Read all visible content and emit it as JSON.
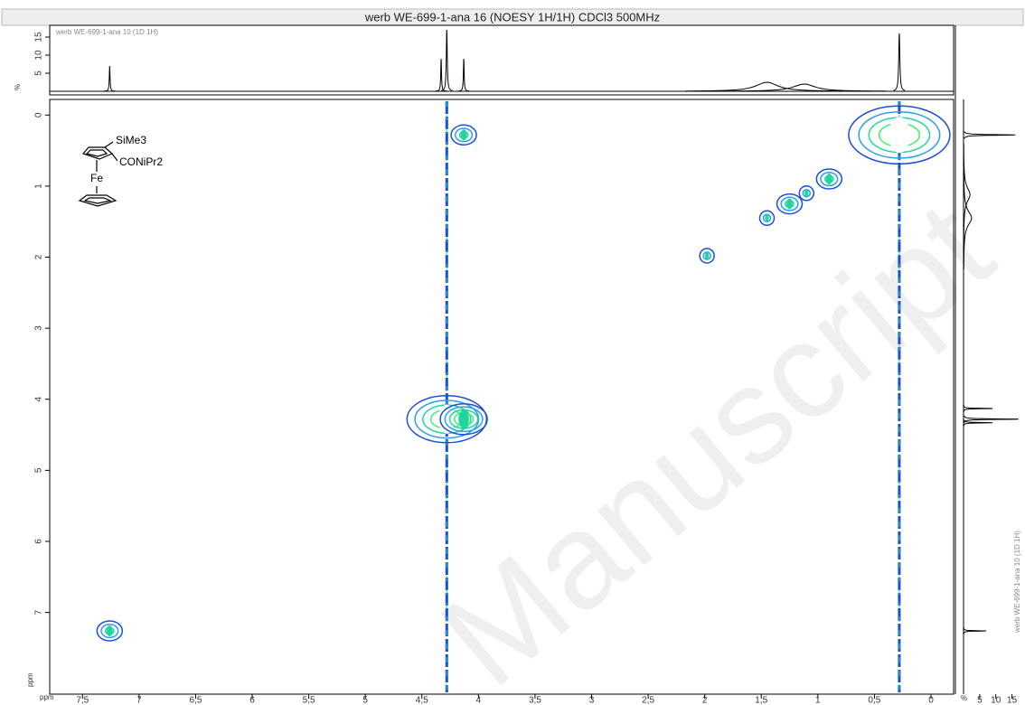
{
  "chart_data": {
    "type": "contour",
    "title": "werb WE-699-1-ana 16 (NOESY 1H/1H) CDCl3 500MHz",
    "projection_label": "werb WE-699-1-ana 10 (1D 1H)",
    "x_axis_label": "ppm",
    "y_axis_label": "ppm",
    "projection_axis_label": "%",
    "watermark": "Manuscript",
    "structure_labels": [
      "SiMe3",
      "CONiPr2",
      "Fe"
    ],
    "xlim": [
      7.79,
      -0.2
    ],
    "xticks": [
      {
        "value": 7.5,
        "label": "7,5"
      },
      7,
      {
        "value": 6.5,
        "label": "6,5"
      },
      6,
      {
        "value": 5.5,
        "label": "5,5"
      },
      5,
      {
        "value": 4.5,
        "label": "4,5"
      },
      4,
      {
        "value": 3.5,
        "label": "3,5"
      },
      3,
      {
        "value": 2.5,
        "label": "2,5"
      },
      2,
      {
        "value": 1.5,
        "label": "1,5"
      },
      1,
      {
        "value": 0.5,
        "label": "0,5"
      },
      0
    ],
    "ylim": [
      -0.22,
      8.15
    ],
    "yticks": [
      0,
      1,
      2,
      3,
      4,
      5,
      6,
      7
    ],
    "cross_peaks": {
      "x": [
        4.28,
        4.13,
        4.13,
        0.28,
        0.9,
        1.1,
        1.25,
        1.45,
        1.98,
        7.26
      ],
      "values": [
        4.28,
        4.28,
        0.28,
        0.28,
        0.9,
        1.1,
        1.25,
        1.45,
        1.98,
        7.26
      ],
      "sizes": [
        7,
        4,
        2,
        9,
        2,
        1,
        2,
        1,
        1,
        2
      ]
    },
    "projection": {
      "positions": [
        7.26,
        4.33,
        4.28,
        4.13,
        1.45,
        1.12,
        0.28
      ],
      "heights": [
        7,
        9,
        17,
        9,
        2.5,
        2,
        16
      ],
      "widths": [
        0.004,
        0.004,
        0.005,
        0.004,
        0.12,
        0.12,
        0.006
      ]
    },
    "projection_lim": [
      0,
      18.75
    ],
    "projection_ticks": [
      5,
      10,
      15
    ],
    "colors": [
      "#1c4fd8",
      "#2aa0e8",
      "#22d4a0",
      "#40f070",
      "#ffffff"
    ]
  }
}
